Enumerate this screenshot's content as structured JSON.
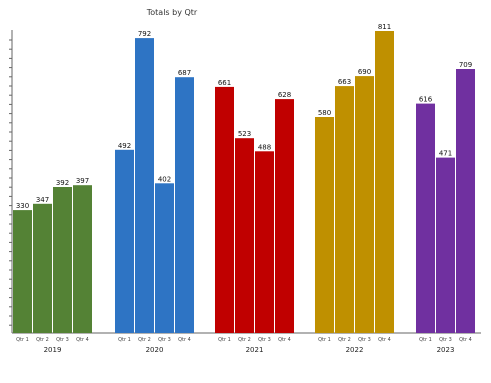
{
  "chart_data": {
    "type": "bar",
    "title": "Totals by Qtr",
    "xlabel": "",
    "ylabel": "",
    "ylim": [
      0,
      811
    ],
    "legend": "none",
    "grid": false,
    "groups": [
      {
        "year": "2019",
        "color": "#548235",
        "bars": [
          {
            "label": "Qtr 1",
            "value": 330
          },
          {
            "label": "Qtr 2",
            "value": 347
          },
          {
            "label": "Qtr 3",
            "value": 392
          },
          {
            "label": "Qtr 4",
            "value": 397
          }
        ]
      },
      {
        "year": "2020",
        "color": "#2e74c4",
        "bars": [
          {
            "label": "Qtr 1",
            "value": 492
          },
          {
            "label": "Qtr 2",
            "value": 792
          },
          {
            "label": "Qtr 3",
            "value": 402
          },
          {
            "label": "Qtr 4",
            "value": 687
          }
        ]
      },
      {
        "year": "2021",
        "color": "#c00000",
        "bars": [
          {
            "label": "Qtr 1",
            "value": 661
          },
          {
            "label": "Qtr 2",
            "value": 523
          },
          {
            "label": "Qtr 3",
            "value": 488
          },
          {
            "label": "Qtr 4",
            "value": 628
          }
        ]
      },
      {
        "year": "2022",
        "color": "#bf9000",
        "bars": [
          {
            "label": "Qtr 1",
            "value": 580
          },
          {
            "label": "Qtr 2",
            "value": 663
          },
          {
            "label": "Qtr 3",
            "value": 690
          },
          {
            "label": "Qtr 4",
            "value": 811
          }
        ]
      },
      {
        "year": "2023",
        "color": "#7030a0",
        "bars": [
          {
            "label": "Qtr 1",
            "value": 616
          },
          {
            "label": "Qtr 3",
            "value": 471
          },
          {
            "label": "Qtr 4",
            "value": 709
          }
        ]
      }
    ]
  }
}
